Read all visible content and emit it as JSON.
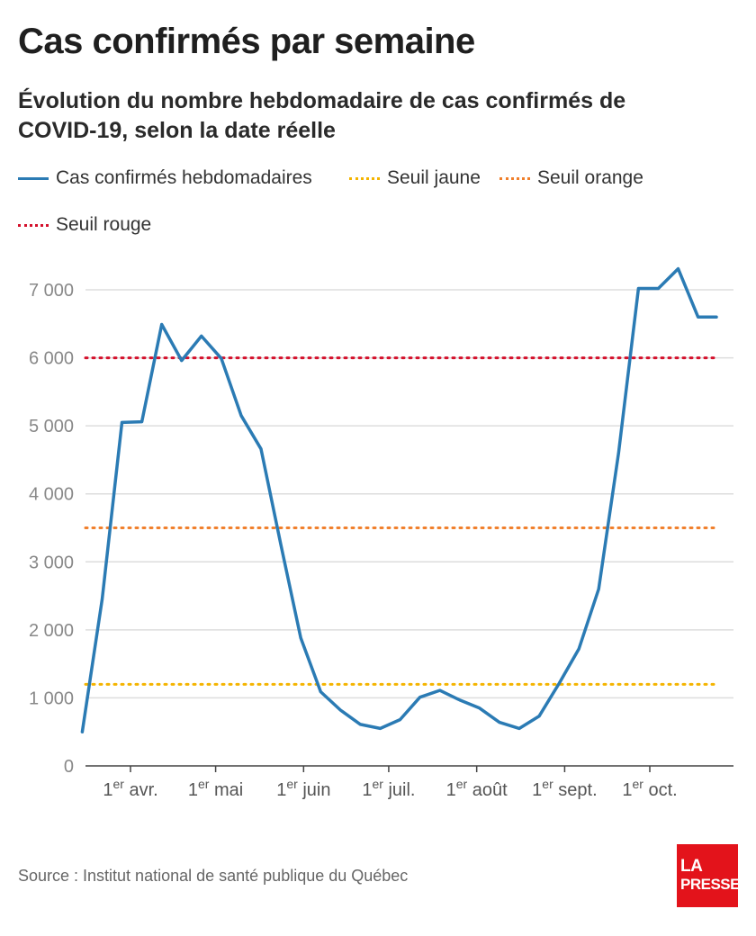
{
  "header": {
    "title": "Cas confirmés par semaine",
    "subtitle": "Évolution du nombre hebdomadaire de cas confirmés de COVID-19, selon la date réelle"
  },
  "legend": {
    "items": [
      {
        "label": "Cas confirmés hebdomadaires",
        "style": "solid",
        "color": "#2b7bb4"
      },
      {
        "label": "Seuil jaune",
        "style": "dotted",
        "color": "#f4b400"
      },
      {
        "label": "Seuil orange",
        "style": "dotted",
        "color": "#f07f2b"
      },
      {
        "label": "Seuil rouge",
        "style": "dotted",
        "color": "#d4102b"
      }
    ]
  },
  "chart_data": {
    "type": "line",
    "title": "Cas confirmés par semaine",
    "subtitle": "Évolution du nombre hebdomadaire de cas confirmés de COVID-19, selon la date réelle",
    "xlabel": "",
    "ylabel": "",
    "ylim": [
      0,
      7500
    ],
    "yticks": [
      0,
      1000,
      2000,
      3000,
      4000,
      5000,
      6000,
      7000
    ],
    "ytick_labels": [
      "0",
      "1 000",
      "2 000",
      "3 000",
      "4 000",
      "5 000",
      "6 000",
      "7 000"
    ],
    "xticks": [
      {
        "sup": "er",
        "label": "1 avr.",
        "x": "2020-04-01"
      },
      {
        "sup": "er",
        "label": "1 mai",
        "x": "2020-05-01"
      },
      {
        "sup": "er",
        "label": "1 juin",
        "x": "2020-06-01"
      },
      {
        "sup": "er",
        "label": "1 juil.",
        "x": "2020-07-01"
      },
      {
        "sup": "er",
        "label": "1 août",
        "x": "2020-08-01"
      },
      {
        "sup": "er",
        "label": "1 sept.",
        "x": "2020-09-01"
      },
      {
        "sup": "er",
        "label": "1 oct.",
        "x": "2020-10-01"
      }
    ],
    "grid": true,
    "series": [
      {
        "name": "Cas confirmés hebdomadaires",
        "color": "#2b7bb4",
        "x": [
          "2020-03-15",
          "2020-03-22",
          "2020-03-29",
          "2020-04-05",
          "2020-04-12",
          "2020-04-19",
          "2020-04-26",
          "2020-05-03",
          "2020-05-10",
          "2020-05-17",
          "2020-05-24",
          "2020-05-31",
          "2020-06-07",
          "2020-06-14",
          "2020-06-21",
          "2020-06-28",
          "2020-07-05",
          "2020-07-12",
          "2020-07-19",
          "2020-07-26",
          "2020-08-02",
          "2020-08-09",
          "2020-08-16",
          "2020-08-23",
          "2020-08-30",
          "2020-09-06",
          "2020-09-13",
          "2020-09-20",
          "2020-09-27",
          "2020-10-04",
          "2020-10-11",
          "2020-10-18",
          "2020-10-25"
        ],
        "values": [
          500,
          2450,
          5050,
          5060,
          6490,
          5960,
          6320,
          5990,
          5150,
          4660,
          3250,
          1880,
          1090,
          820,
          610,
          550,
          680,
          1010,
          1110,
          970,
          850,
          640,
          550,
          730,
          1210,
          1720,
          2600,
          4600,
          7020,
          7020,
          7310,
          6600,
          6600
        ]
      }
    ],
    "thresholds": [
      {
        "name": "Seuil jaune",
        "value": 1200,
        "color": "#f4b400"
      },
      {
        "name": "Seuil orange",
        "value": 3500,
        "color": "#f07f2b"
      },
      {
        "name": "Seuil rouge",
        "value": 6000,
        "color": "#d4102b"
      }
    ]
  },
  "footer": {
    "source": "Source : Institut national de santé publique du Québec",
    "logo_line1": "LA",
    "logo_line2": "PRESSE"
  }
}
